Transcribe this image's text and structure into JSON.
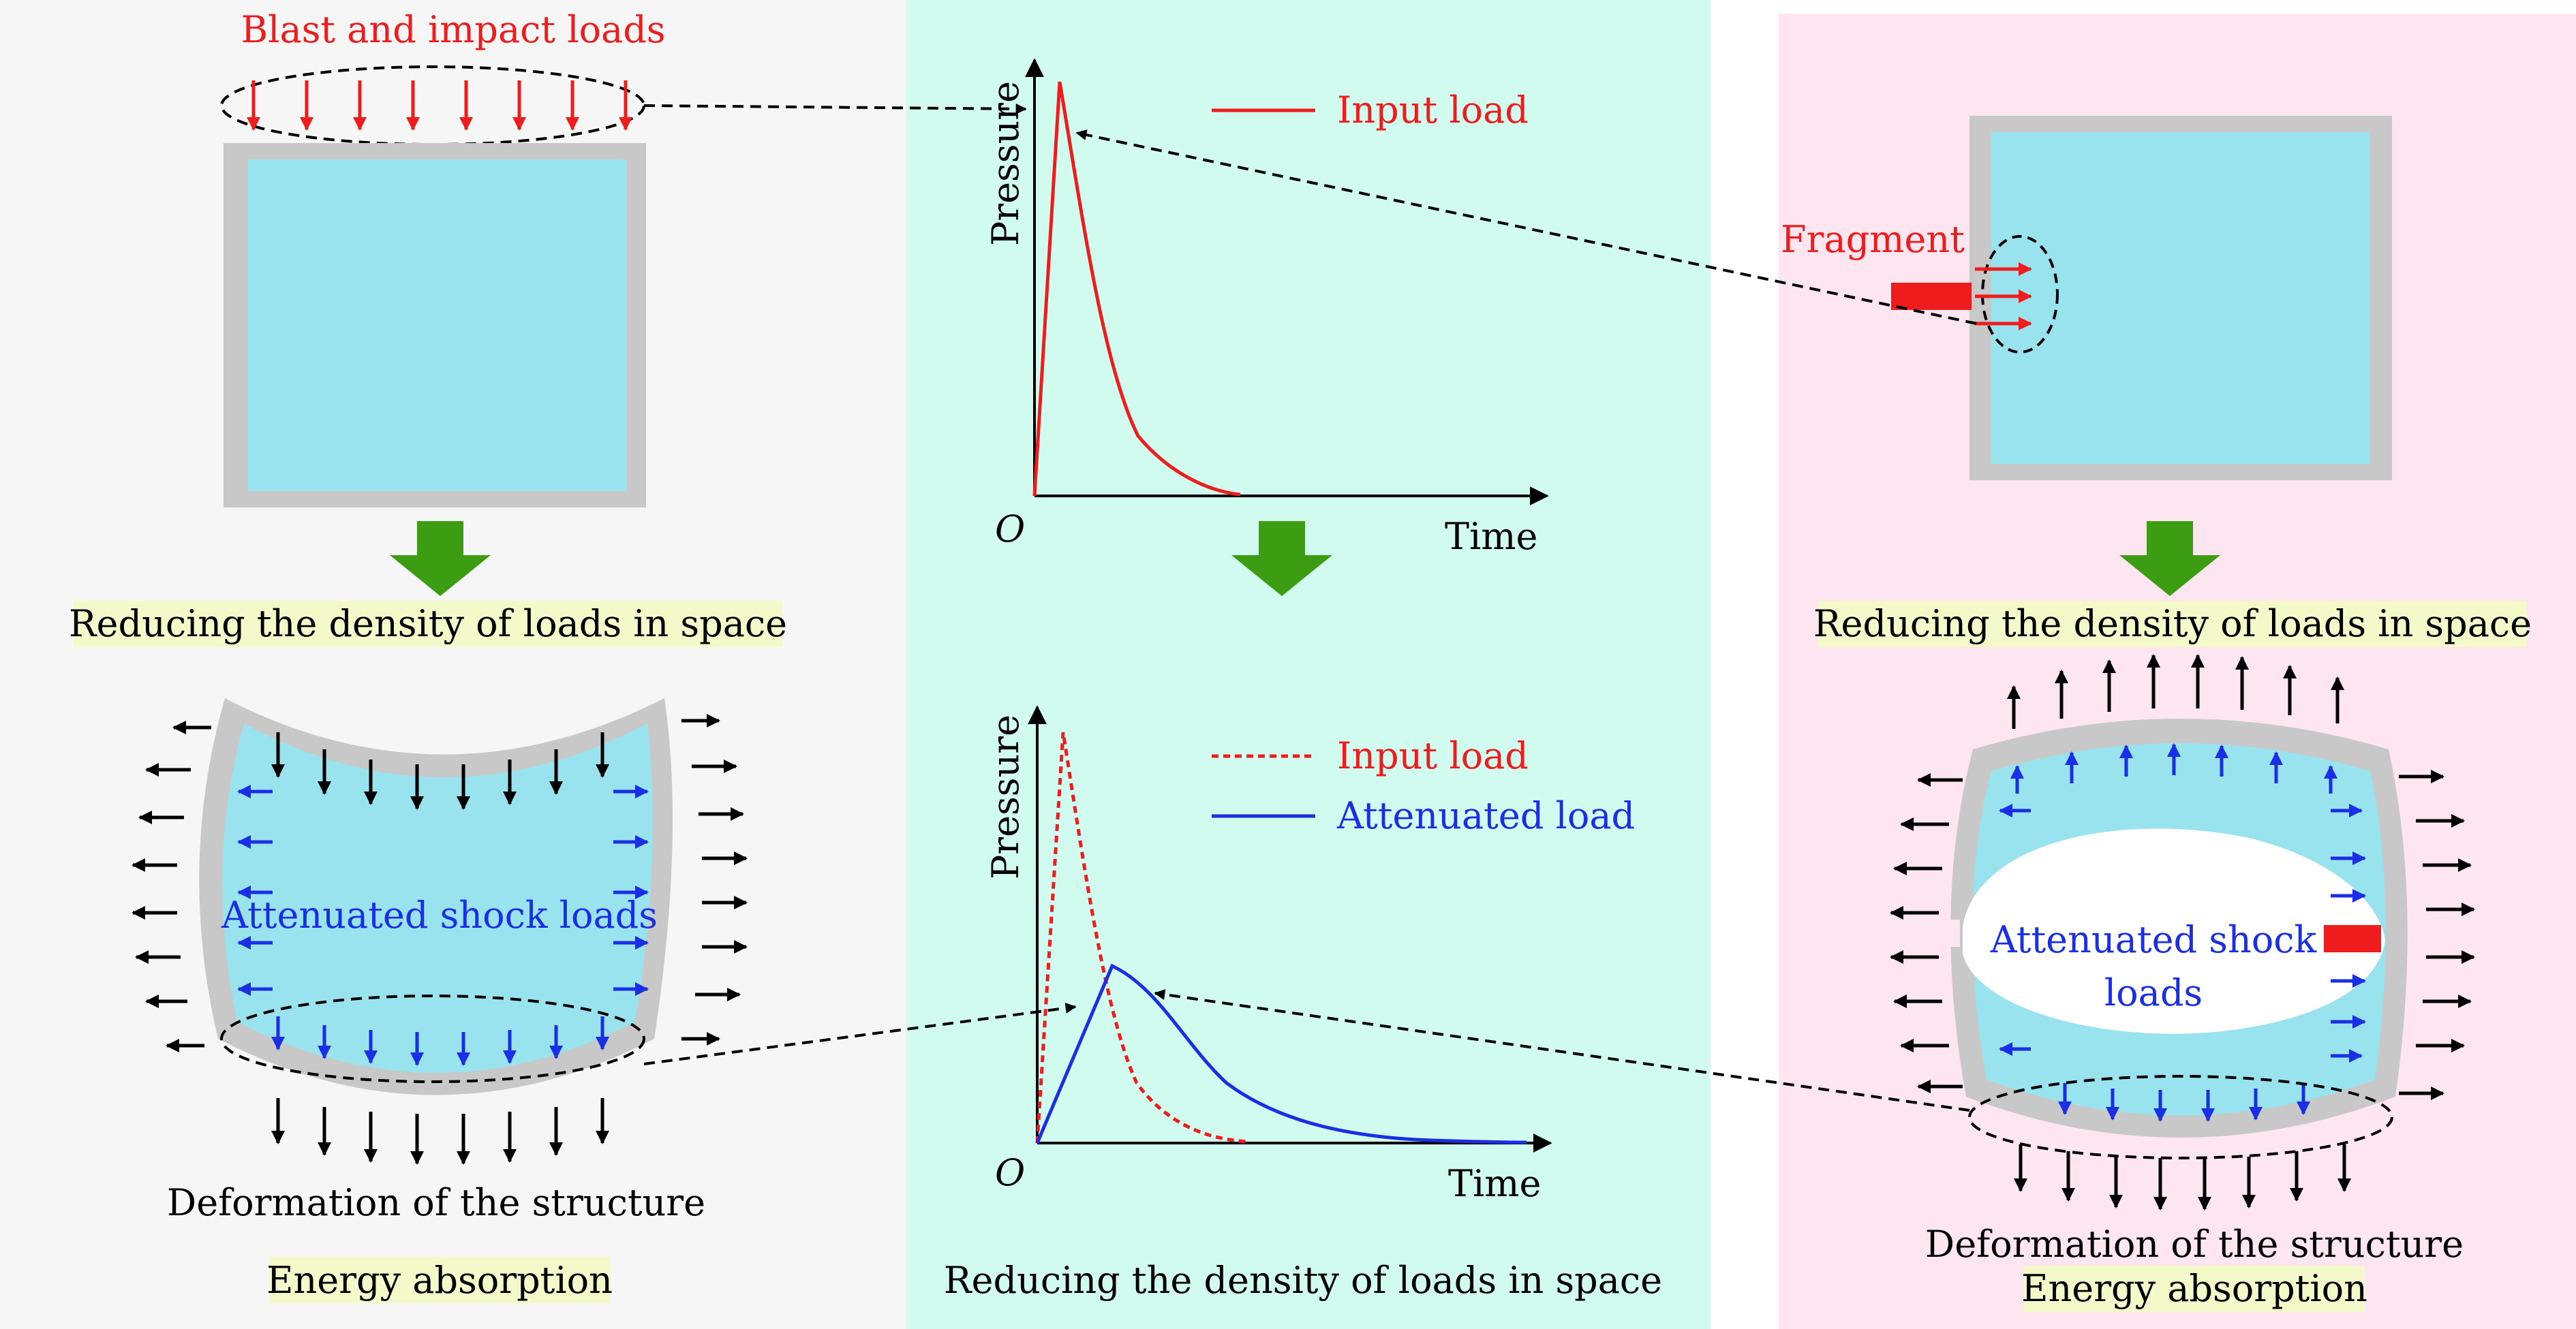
{
  "colors": {
    "left_bg": "#f6f6f6",
    "middle_bg": "#d2fbf0",
    "right_bg": "#fde6ef",
    "liquid": "#99e3ef",
    "wall": "#c8c8c8",
    "load_red": "#ee1c1c",
    "attenuated_blue": "#1a2ee6",
    "arrow_green": "#3d9d12",
    "label_bg": "#f3f9c8",
    "white": "#ffffff",
    "black": "#000000"
  },
  "left_panel": {
    "top_label": "Blast and impact loads",
    "mid_label": "Reducing the density of loads in space",
    "inner_label": "Attenuated shock loads",
    "bottom_label_1": "Deformation of the structure",
    "bottom_label_2": "Energy absorption"
  },
  "middle_panel": {
    "bottom_label": "Reducing the density of loads in space",
    "top_chart": {
      "y_axis_label": "Pressure",
      "x_axis_label": "Time",
      "origin_label": "O",
      "legend": [
        "Input load"
      ]
    },
    "bottom_chart": {
      "y_axis_label": "Pressure",
      "x_axis_label": "Time",
      "origin_label": "O",
      "legend": [
        "Input load",
        "Attenuated load"
      ]
    }
  },
  "right_panel": {
    "fragment_label": "Fragment",
    "mid_label": "Reducing the density of loads in space",
    "inner_label_1": "Attenuated shock",
    "inner_label_2": "loads",
    "bottom_label_1": "Deformation of the structure",
    "bottom_label_2": "Energy absorption"
  },
  "icons": [
    "down-arrow-icon",
    "right-arrow-icon"
  ]
}
